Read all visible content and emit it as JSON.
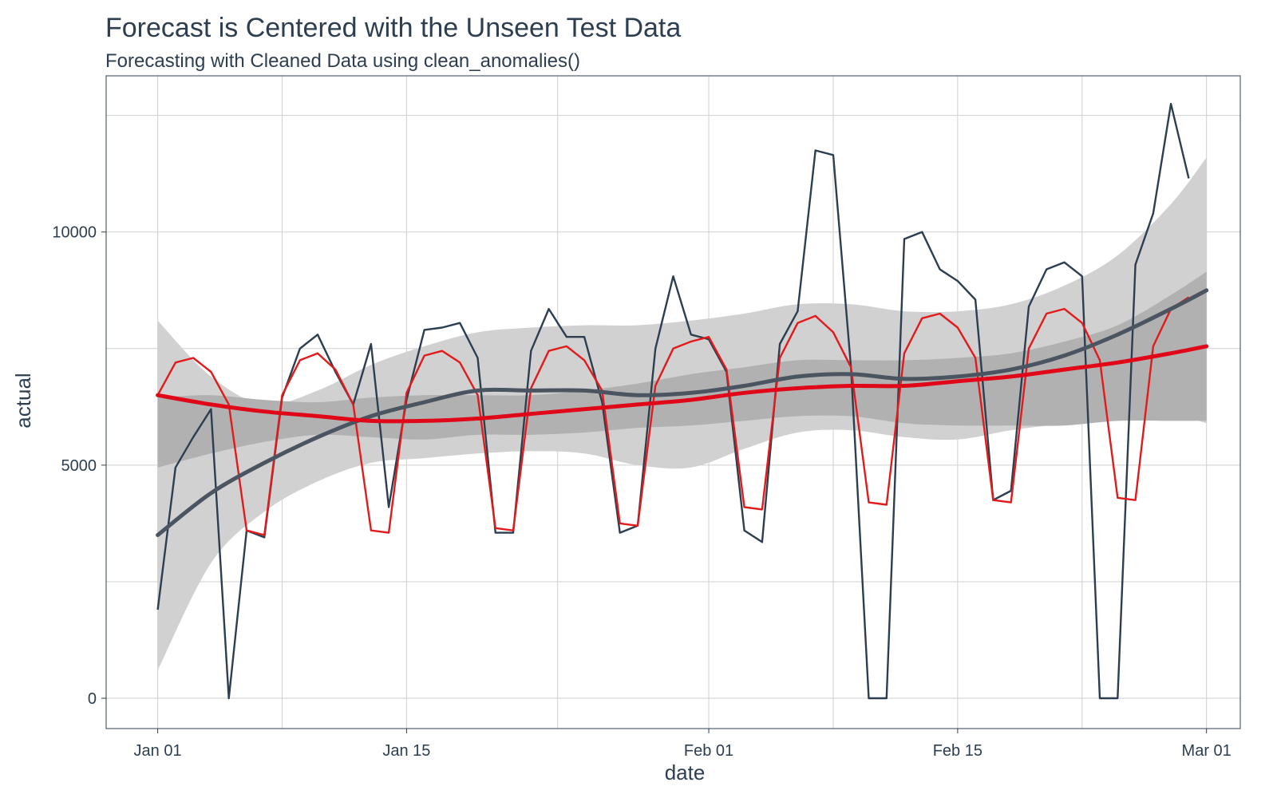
{
  "chart_data": {
    "type": "line",
    "title": "Forecast is Centered with the Unseen Test Data",
    "subtitle": "Forecasting with Cleaned Data using clean_anomalies()",
    "xlabel": "date",
    "ylabel": "actual",
    "x_ticks": [
      {
        "day": 0,
        "label": "Jan 01"
      },
      {
        "day": 14,
        "label": "Jan 15"
      },
      {
        "day": 31,
        "label": "Feb 01"
      },
      {
        "day": 45,
        "label": "Feb 15"
      },
      {
        "day": 59,
        "label": "Mar 01"
      }
    ],
    "y_ticks": [
      0,
      5000,
      10000
    ],
    "ylim": [
      -650,
      13350
    ],
    "xlim": [
      -2.9,
      60.9
    ],
    "grid": true,
    "colors": {
      "actual": "#2c3e50",
      "cleaned": "#e31a1c",
      "band_outer": "#d1d1d1",
      "band_inner": "#b1b1b1",
      "trend_actual": "#4b5461",
      "trend_cleaned": "#e00718",
      "panel_border": "#2c3e50",
      "grid": "#cfcfcf"
    },
    "series": [
      {
        "id": "actual",
        "values": [
          1900,
          4950,
          5600,
          6200,
          0,
          3600,
          3450,
          6450,
          7500,
          7800,
          7000,
          6300,
          7600,
          4100,
          6400,
          7900,
          7950,
          8050,
          7300,
          3550,
          3550,
          7450,
          8350,
          7750,
          7750,
          6350,
          3550,
          3700,
          7500,
          9050,
          7800,
          7700,
          7000,
          3600,
          3350,
          7600,
          8300,
          11750,
          11650,
          7100,
          0,
          0,
          9850,
          10000,
          9200,
          8950,
          8550,
          4250,
          4450,
          8400,
          9200,
          9350,
          9050,
          0,
          0,
          9300,
          10400,
          12750,
          11150
        ]
      },
      {
        "id": "cleaned",
        "values": [
          6500,
          7200,
          7300,
          7000,
          6300,
          3600,
          3500,
          6500,
          7250,
          7400,
          7050,
          6300,
          3600,
          3550,
          6550,
          7350,
          7450,
          7200,
          6500,
          3650,
          3600,
          6650,
          7450,
          7550,
          7250,
          6600,
          3750,
          3700,
          6700,
          7500,
          7650,
          7750,
          7050,
          4100,
          4050,
          7300,
          8050,
          8200,
          7850,
          7100,
          4200,
          4150,
          7400,
          8150,
          8250,
          7950,
          7300,
          4250,
          4200,
          7500,
          8250,
          8350,
          8050,
          7250,
          4300,
          4250,
          7550,
          8350,
          8600
        ]
      }
    ],
    "smooth": [
      {
        "id": "trend_actual",
        "x": [
          0,
          3,
          6,
          9,
          12,
          15,
          18,
          21,
          24,
          27,
          30,
          33,
          36,
          39,
          42,
          45,
          48,
          51,
          54,
          57,
          59
        ],
        "values": [
          3500,
          4400,
          5050,
          5600,
          6050,
          6350,
          6600,
          6600,
          6600,
          6500,
          6550,
          6700,
          6900,
          6950,
          6850,
          6900,
          7050,
          7350,
          7800,
          8350,
          8750
        ],
        "ci_lower": [
          600,
          2900,
          4000,
          4650,
          5050,
          5150,
          5250,
          5300,
          5250,
          5000,
          4950,
          5350,
          5700,
          5750,
          5600,
          5550,
          5750,
          5900,
          6150,
          6100,
          5900
        ],
        "ci_upper": [
          8100,
          6900,
          6300,
          6600,
          7150,
          7550,
          7850,
          7950,
          8000,
          8000,
          8100,
          8250,
          8450,
          8450,
          8300,
          8300,
          8450,
          8850,
          9500,
          10600,
          11600
        ]
      },
      {
        "id": "trend_cleaned",
        "x": [
          0,
          3,
          6,
          9,
          12,
          15,
          18,
          21,
          24,
          27,
          30,
          33,
          36,
          39,
          42,
          45,
          48,
          51,
          54,
          57,
          59
        ],
        "values": [
          6500,
          6300,
          6150,
          6050,
          5950,
          5950,
          6000,
          6100,
          6200,
          6300,
          6400,
          6550,
          6650,
          6700,
          6700,
          6800,
          6900,
          7050,
          7200,
          7400,
          7550
        ],
        "ci_lower": [
          4950,
          5250,
          5500,
          5650,
          5600,
          5550,
          5650,
          5650,
          5700,
          5800,
          5850,
          5950,
          6050,
          6050,
          5900,
          5850,
          5850,
          5850,
          5950,
          5950,
          5950
        ],
        "ci_upper": [
          6450,
          6500,
          6400,
          6350,
          6450,
          6500,
          6500,
          6500,
          6600,
          6750,
          6950,
          7100,
          7250,
          7250,
          7250,
          7300,
          7400,
          7650,
          8000,
          8650,
          9150
        ]
      }
    ]
  }
}
